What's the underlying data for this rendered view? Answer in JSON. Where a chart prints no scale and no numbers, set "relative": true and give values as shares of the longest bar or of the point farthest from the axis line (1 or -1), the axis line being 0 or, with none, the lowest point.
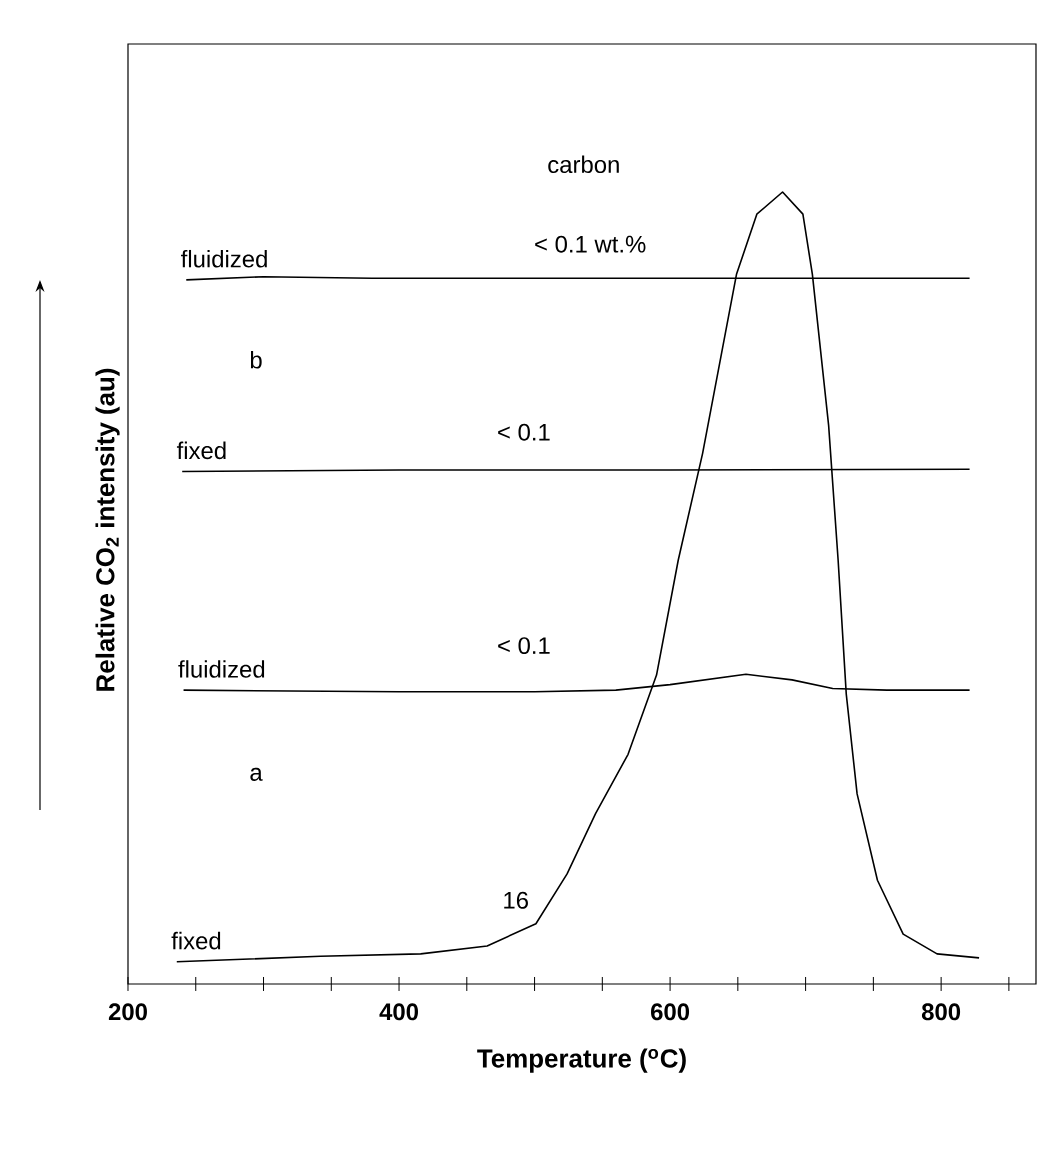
{
  "chart_data": {
    "type": "line",
    "relative": true,
    "xlabel": "Temperature ($^{o}$C)",
    "ylabel": "Relative CO$_{2}$ intensity (au)",
    "xlim": [
      200,
      870
    ],
    "xticks": [
      200,
      {
        "value": 250,
        "label": null
      },
      {
        "value": 300,
        "label": null
      },
      {
        "value": 350,
        "label": null
      },
      400,
      {
        "value": 450,
        "label": null
      },
      {
        "value": 500,
        "label": null
      },
      {
        "value": 550,
        "label": null
      },
      600,
      {
        "value": 650,
        "label": null
      },
      {
        "value": 700,
        "label": null
      },
      {
        "value": 750,
        "label": null
      },
      800,
      {
        "value": 850,
        "label": null
      }
    ],
    "tick_labels": "x",
    "series": [
      {
        "name": "fixed",
        "color": "#000000",
        "x": [
          236,
          342,
          416,
          465,
          501,
          524,
          545,
          569,
          590,
          606,
          624,
          649,
          664,
          683,
          698,
          705,
          717,
          724,
          730,
          738,
          753,
          772,
          797,
          828
        ],
        "values": [
          0.028,
          0.035,
          0.038,
          0.048,
          0.076,
          0.139,
          0.215,
          0.29,
          0.39,
          0.535,
          0.67,
          0.896,
          0.972,
          1.0,
          0.972,
          0.896,
          0.705,
          0.535,
          0.366,
          0.24,
          0.131,
          0.063,
          0.038,
          0.033
        ]
      },
      {
        "name": "fluidized",
        "color": "#000000",
        "x": [
          241,
          400,
          500,
          560,
          600,
          656,
          690,
          720,
          760,
          821
        ],
        "values": [
          0.371,
          0.369,
          0.369,
          0.371,
          0.378,
          0.391,
          0.384,
          0.373,
          0.371,
          0.371
        ]
      },
      {
        "name": "fixed",
        "color": "#000000",
        "x": [
          240,
          400,
          600,
          821
        ],
        "values": [
          0.647,
          0.649,
          0.649,
          0.65
        ]
      },
      {
        "name": "fluidized",
        "color": "#000000",
        "x": [
          243,
          300,
          380,
          500,
          821
        ],
        "values": [
          0.889,
          0.893,
          0.891,
          0.891,
          0.891
        ]
      }
    ],
    "annotations": [
      "carbon",
      "< 0.1  wt.%",
      "b",
      "< 0.1",
      "< 0.1",
      "a",
      "16"
    ]
  }
}
